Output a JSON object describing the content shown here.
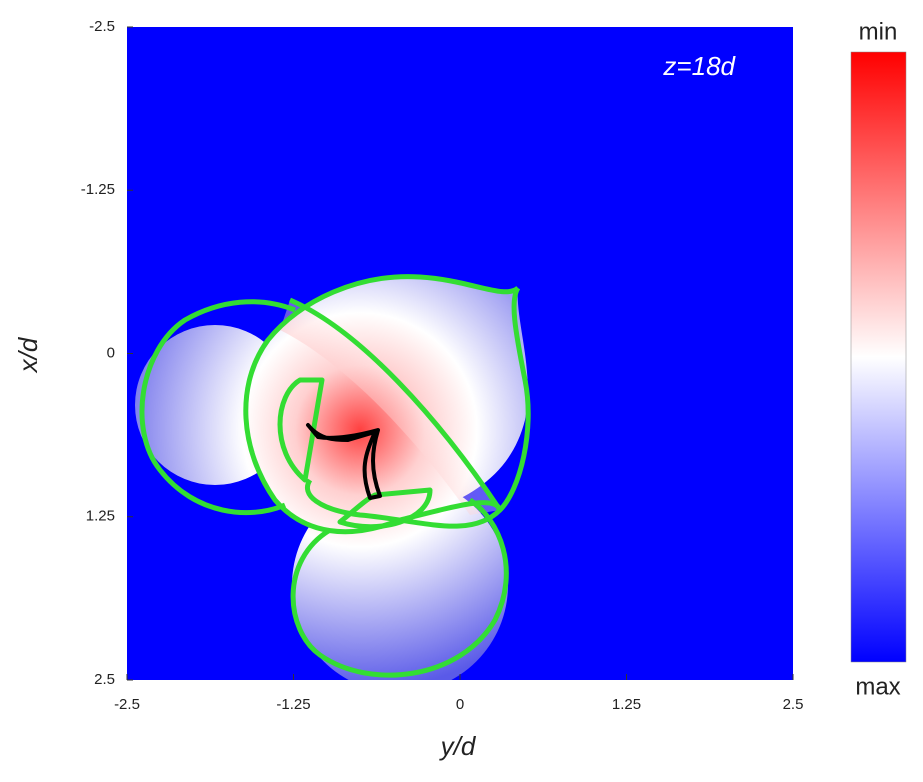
{
  "chart_data": {
    "type": "heatmap",
    "annotation": "z=18d",
    "xlabel": "y/d",
    "ylabel": "x/d",
    "xlim": [
      -2.5,
      2.5
    ],
    "xticks": [
      -2.5,
      -1.25,
      0,
      1.25,
      2.5
    ],
    "ylim": [
      -2.5,
      2.5
    ],
    "yticks": [
      -2.5,
      -1.25,
      0,
      1.25,
      2.5
    ],
    "y_inverted": true,
    "background": "#0000ff",
    "curve_color": "#33dd33",
    "caustic_color": "#000000",
    "colorbar": {
      "top_label": "min",
      "bottom_label": "max",
      "colors": [
        "#ff0000",
        "#ffffff",
        "#0000ff"
      ]
    }
  }
}
